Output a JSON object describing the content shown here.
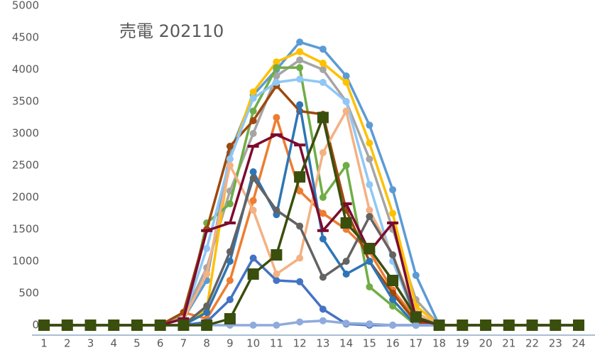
{
  "chart_data": {
    "type": "line",
    "title": "売電 202110",
    "categories": [
      "1",
      "2",
      "3",
      "4",
      "5",
      "6",
      "7",
      "8",
      "9",
      "10",
      "11",
      "12",
      "13",
      "14",
      "15",
      "16",
      "17",
      "18",
      "19",
      "20",
      "21",
      "22",
      "23",
      "24"
    ],
    "ylim": [
      0,
      5000
    ],
    "yticks": [
      0,
      500,
      1000,
      1500,
      2000,
      2500,
      3000,
      3500,
      4000,
      4500,
      5000
    ],
    "grid": false,
    "series": [
      {
        "color": "#5b9bd5",
        "marker": "circle",
        "values": [
          0,
          0,
          0,
          0,
          0,
          0,
          100,
          700,
          2700,
          3600,
          4000,
          4430,
          4320,
          3900,
          3130,
          2120,
          780,
          0,
          0,
          0,
          0,
          0,
          0,
          0
        ]
      },
      {
        "color": "#ed7d31",
        "marker": "circle",
        "values": [
          0,
          0,
          0,
          0,
          0,
          0,
          200,
          100,
          700,
          1950,
          3250,
          2100,
          1750,
          1500,
          1150,
          550,
          100,
          0,
          0,
          0,
          0,
          0,
          0,
          0
        ]
      },
      {
        "color": "#a5a5a5",
        "marker": "circle",
        "values": [
          0,
          0,
          0,
          0,
          0,
          0,
          150,
          900,
          2100,
          3000,
          3900,
          4150,
          4000,
          3500,
          2600,
          1500,
          400,
          0,
          0,
          0,
          0,
          0,
          0,
          0
        ]
      },
      {
        "color": "#ffc000",
        "marker": "circle",
        "values": [
          0,
          0,
          0,
          0,
          0,
          0,
          0,
          250,
          2600,
          3650,
          4120,
          4280,
          4100,
          3800,
          2850,
          1750,
          300,
          0,
          0,
          0,
          0,
          0,
          0,
          0
        ]
      },
      {
        "color": "#4472c4",
        "marker": "circle",
        "values": [
          0,
          0,
          0,
          0,
          0,
          0,
          0,
          50,
          400,
          1050,
          700,
          680,
          250,
          20,
          0,
          0,
          0,
          0,
          0,
          0,
          0,
          0,
          0,
          0
        ]
      },
      {
        "color": "#70ad47",
        "marker": "circle",
        "values": [
          0,
          0,
          0,
          0,
          0,
          0,
          0,
          1600,
          1900,
          3350,
          4030,
          4030,
          2000,
          2500,
          600,
          300,
          0,
          0,
          0,
          0,
          0,
          0,
          0,
          0
        ]
      },
      {
        "color": "#9e480e",
        "marker": "circle",
        "values": [
          0,
          0,
          0,
          0,
          0,
          0,
          200,
          1500,
          2800,
          3200,
          3750,
          3350,
          3300,
          1800,
          1000,
          500,
          50,
          0,
          0,
          0,
          0,
          0,
          0,
          0
        ]
      },
      {
        "color": "#8fc7f5",
        "marker": "circle",
        "values": [
          0,
          0,
          0,
          0,
          0,
          0,
          100,
          1200,
          2600,
          3550,
          3800,
          3850,
          3800,
          3500,
          2200,
          1000,
          100,
          0,
          0,
          0,
          0,
          0,
          0,
          0
        ]
      },
      {
        "color": "#f4b183",
        "marker": "circle",
        "values": [
          0,
          0,
          0,
          0,
          0,
          0,
          100,
          800,
          2500,
          1800,
          800,
          1050,
          2700,
          3350,
          1800,
          1100,
          200,
          0,
          0,
          0,
          0,
          0,
          0,
          0
        ]
      },
      {
        "color": "#2e75b6",
        "marker": "circle",
        "values": [
          0,
          0,
          0,
          0,
          0,
          0,
          0,
          200,
          1000,
          2400,
          1730,
          3450,
          1350,
          800,
          1000,
          400,
          0,
          0,
          0,
          0,
          0,
          0,
          0,
          0
        ]
      },
      {
        "color": "#636363",
        "marker": "circle",
        "values": [
          0,
          0,
          0,
          0,
          0,
          0,
          0,
          300,
          1150,
          2300,
          1800,
          1550,
          750,
          1000,
          1700,
          1100,
          100,
          0,
          0,
          0,
          0,
          0,
          0,
          0
        ]
      },
      {
        "color": "#8faadc",
        "marker": "circle",
        "values": [
          0,
          0,
          0,
          0,
          0,
          0,
          0,
          0,
          0,
          0,
          0,
          50,
          70,
          30,
          20,
          0,
          0,
          0,
          0,
          0,
          0,
          0,
          0,
          0
        ]
      },
      {
        "color": "#7b0c2e",
        "marker": "dash",
        "values": [
          0,
          0,
          0,
          0,
          0,
          0,
          100,
          1480,
          1600,
          2800,
          2980,
          2820,
          1480,
          1900,
          1150,
          1600,
          100,
          0,
          0,
          0,
          0,
          0,
          0,
          0
        ]
      },
      {
        "color": "#3a4e0d",
        "marker": "square",
        "values": [
          0,
          0,
          0,
          0,
          0,
          0,
          0,
          0,
          100,
          800,
          1100,
          2320,
          3250,
          1600,
          1200,
          700,
          130,
          0,
          0,
          0,
          0,
          0,
          0,
          0
        ]
      }
    ]
  }
}
